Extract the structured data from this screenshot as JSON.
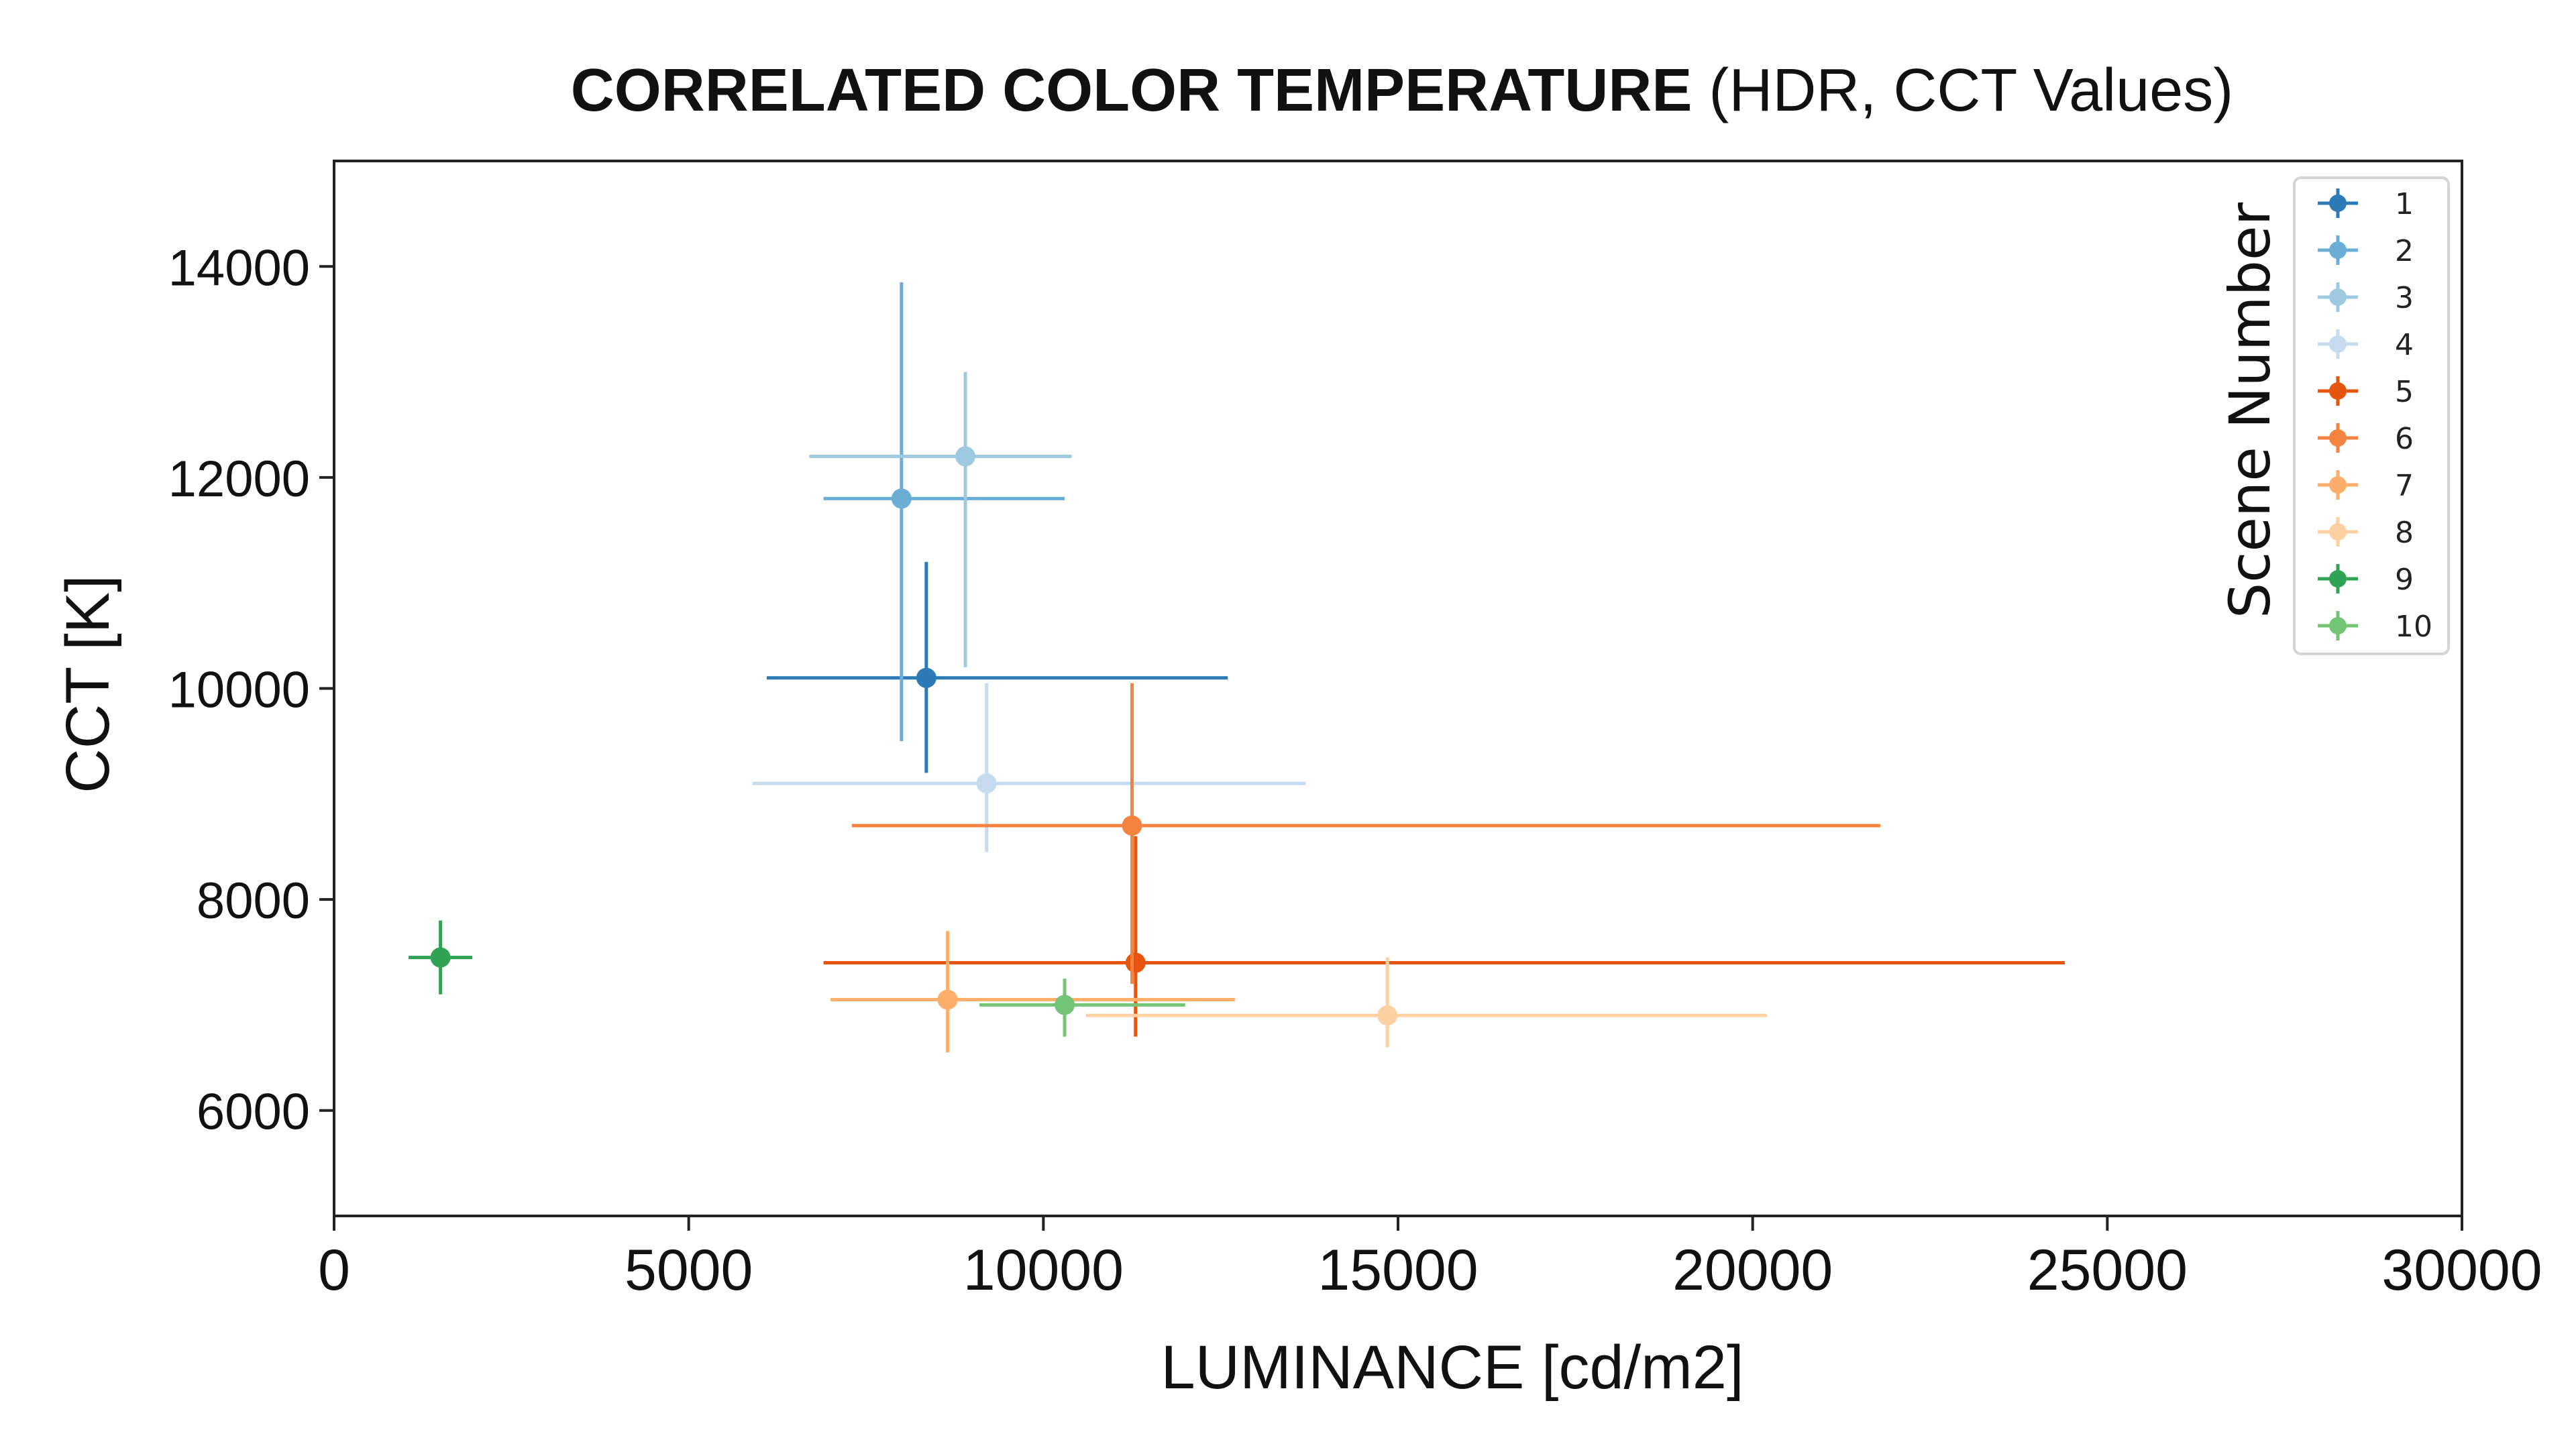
{
  "chart_data": {
    "type": "scatter",
    "title_bold": "CORRELATED COLOR TEMPERATURE",
    "title_rest": "(HDR, CCT Values)",
    "xlabel": "LUMINANCE [cd/m2]",
    "ylabel": "CCT [K]",
    "xlim": [
      0,
      30000
    ],
    "ylim": [
      5000,
      15000
    ],
    "x_ticks": [
      "0",
      "5000",
      "10000",
      "15000",
      "20000",
      "25000",
      "30000"
    ],
    "y_ticks": [
      "6000",
      "8000",
      "10000",
      "12000",
      "14000"
    ],
    "grid": false,
    "legend_title": "Scene Number",
    "legend_position": "top-right",
    "series": [
      {
        "name": "1",
        "color": "#2c7bb6",
        "x": 8350,
        "y": 10100,
        "xerr": [
          6100,
          12600
        ],
        "yerr": [
          9200,
          11200
        ]
      },
      {
        "name": "2",
        "color": "#6aaed6",
        "x": 8000,
        "y": 11800,
        "xerr": [
          6900,
          10300
        ],
        "yerr": [
          9500,
          13850
        ]
      },
      {
        "name": "3",
        "color": "#9ecae1",
        "x": 8900,
        "y": 12200,
        "xerr": [
          6700,
          10400
        ],
        "yerr": [
          10200,
          13000
        ]
      },
      {
        "name": "4",
        "color": "#c6dbef",
        "x": 9200,
        "y": 9100,
        "xerr": [
          5900,
          13700
        ],
        "yerr": [
          8450,
          10050
        ]
      },
      {
        "name": "5",
        "color": "#e6550d",
        "x": 11300,
        "y": 7400,
        "xerr": [
          6900,
          24400
        ],
        "yerr": [
          6700,
          8600
        ]
      },
      {
        "name": "6",
        "color": "#f3833f",
        "x": 11250,
        "y": 8700,
        "xerr": [
          7300,
          21800
        ],
        "yerr": [
          7200,
          10050
        ]
      },
      {
        "name": "7",
        "color": "#fdae6b",
        "x": 8650,
        "y": 7050,
        "xerr": [
          7000,
          12700
        ],
        "yerr": [
          6550,
          7700
        ]
      },
      {
        "name": "8",
        "color": "#fdd0a2",
        "x": 14850,
        "y": 6900,
        "xerr": [
          10600,
          20200
        ],
        "yerr": [
          6600,
          7450
        ]
      },
      {
        "name": "9",
        "color": "#31a354",
        "x": 1500,
        "y": 7450,
        "xerr": [
          1050,
          1950
        ],
        "yerr": [
          7100,
          7800
        ]
      },
      {
        "name": "10",
        "color": "#74c476",
        "x": 10300,
        "y": 7000,
        "xerr": [
          9100,
          12000
        ],
        "yerr": [
          6700,
          7250
        ]
      }
    ]
  }
}
